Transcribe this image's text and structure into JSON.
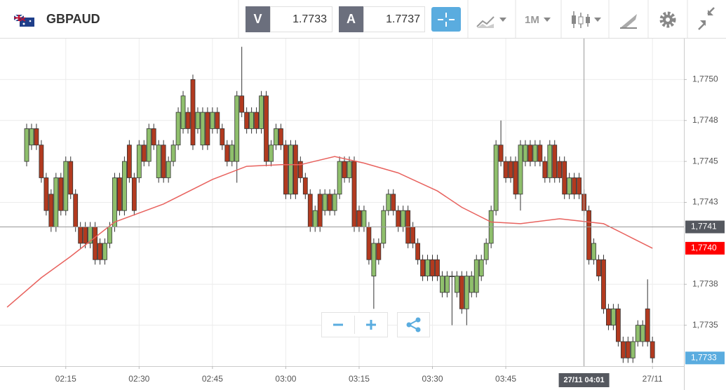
{
  "header": {
    "symbol": "GBPAUD",
    "bid_label": "V",
    "bid": "1.7733",
    "ask_label": "A",
    "ask": "1.7737",
    "interval": "1M"
  },
  "chart_data": {
    "type": "candlestick",
    "x": [
      "02:07",
      "02:08",
      "02:09",
      "02:10",
      "02:11",
      "02:12",
      "02:13",
      "02:14",
      "02:15",
      "02:16",
      "02:17",
      "02:18",
      "02:19",
      "02:20",
      "02:21",
      "02:22",
      "02:23",
      "02:24",
      "02:25",
      "02:26",
      "02:27",
      "02:28",
      "02:29",
      "02:30",
      "02:31",
      "02:32",
      "02:33",
      "02:34",
      "02:35",
      "02:36",
      "02:37",
      "02:38",
      "02:39",
      "02:40",
      "02:41",
      "02:42",
      "02:43",
      "02:44",
      "02:45",
      "02:46",
      "02:47",
      "02:48",
      "02:49",
      "02:50",
      "02:51",
      "02:52",
      "02:53",
      "02:54",
      "02:55",
      "02:56",
      "02:57",
      "02:58",
      "02:59",
      "03:00",
      "03:01",
      "03:02",
      "03:03",
      "03:04",
      "03:05",
      "03:06",
      "03:07",
      "03:08",
      "03:09",
      "03:10",
      "03:11",
      "03:12",
      "03:13",
      "03:14",
      "03:15",
      "03:16",
      "03:17",
      "03:18",
      "03:19",
      "03:20",
      "03:21",
      "03:22",
      "03:23",
      "03:24",
      "03:25",
      "03:26",
      "03:27",
      "03:28",
      "03:29",
      "03:30",
      "03:31",
      "03:32",
      "03:33",
      "03:34",
      "03:35",
      "03:36",
      "03:37",
      "03:38",
      "03:39",
      "03:40",
      "03:41",
      "03:42",
      "03:43",
      "03:44",
      "03:45",
      "03:46",
      "03:47",
      "03:48",
      "03:49",
      "03:50",
      "03:51",
      "03:52",
      "03:53",
      "03:54",
      "03:55",
      "03:56",
      "03:57",
      "03:58",
      "03:59",
      "04:00",
      "04:01",
      "04:02",
      "04:03",
      "04:04",
      "04:05",
      "04:06",
      "04:07",
      "04:08",
      "04:09",
      "04:10",
      "04:11",
      "04:12",
      "04:13",
      "04:14",
      "04:15"
    ],
    "open": [
      1.7745,
      1.7746,
      1.7747,
      1.7746,
      1.7744,
      1.7743,
      1.7741,
      1.7744,
      1.7742,
      1.7745,
      1.7743,
      1.7741,
      1.7741,
      1.774,
      1.7741,
      1.774,
      1.7739,
      1.774,
      1.7741,
      1.7744,
      1.7742,
      1.7746,
      1.7744,
      1.7744,
      1.7746,
      1.7745,
      1.7747,
      1.7744,
      1.7746,
      1.7744,
      1.7745,
      1.7746,
      1.7747,
      1.7748,
      1.775,
      1.7747,
      1.7746,
      1.7748,
      1.7747,
      1.7748,
      1.7747,
      1.7746,
      1.7745,
      1.7745,
      1.7749,
      1.7748,
      1.7747,
      1.7748,
      1.7747,
      1.7749,
      1.7745,
      1.7746,
      1.7747,
      1.7746,
      1.7743,
      1.7746,
      1.7745,
      1.7744,
      1.7743,
      1.7741,
      1.7743,
      1.7742,
      1.7743,
      1.7742,
      1.7743,
      1.7745,
      1.7744,
      1.7745,
      1.7742,
      1.7741,
      1.7741,
      1.7738,
      1.774,
      1.774,
      1.7742,
      1.7743,
      1.7742,
      1.7741,
      1.7742,
      1.7741,
      1.774,
      1.7739,
      1.7738,
      1.7739,
      1.7739,
      1.7737,
      1.7737,
      1.7738,
      1.7737,
      1.7738,
      1.7736,
      1.7737,
      1.7737,
      1.7738,
      1.7739,
      1.774,
      1.7742,
      1.7746,
      1.7745,
      1.7745,
      1.7745,
      1.7743,
      1.7745,
      1.7746,
      1.7745,
      1.7746,
      1.7745,
      1.7744,
      1.7746,
      1.7745,
      1.7745,
      1.7743,
      1.7744,
      1.7744,
      1.7743,
      1.7742,
      1.7739,
      1.7739,
      1.7739,
      1.7736,
      1.7735,
      1.7736,
      1.7734,
      1.7734,
      1.7733,
      1.7734,
      1.7734,
      1.7736,
      1.7734
    ],
    "high": [
      1.77473,
      1.77473,
      1.77473,
      1.77463,
      1.77443,
      1.77433,
      1.77443,
      1.77443,
      1.77453,
      1.77453,
      1.77433,
      1.77413,
      1.77413,
      1.77413,
      1.77413,
      1.77403,
      1.77403,
      1.77413,
      1.77443,
      1.77443,
      1.77453,
      1.77463,
      1.77443,
      1.77463,
      1.77463,
      1.77473,
      1.77473,
      1.77463,
      1.77463,
      1.77453,
      1.77463,
      1.77483,
      1.77493,
      1.77483,
      1.77503,
      1.77483,
      1.77483,
      1.77483,
      1.77483,
      1.77483,
      1.77473,
      1.77463,
      1.77463,
      1.77493,
      1.7752,
      1.77483,
      1.77483,
      1.77483,
      1.77493,
      1.77493,
      1.77463,
      1.77473,
      1.77473,
      1.77463,
      1.77463,
      1.77463,
      1.77453,
      1.77443,
      1.77433,
      1.77423,
      1.77433,
      1.77433,
      1.77433,
      1.77433,
      1.77453,
      1.77453,
      1.77453,
      1.77453,
      1.77423,
      1.77423,
      1.77413,
      1.77403,
      1.77403,
      1.77423,
      1.77433,
      1.77433,
      1.77423,
      1.77423,
      1.77423,
      1.77413,
      1.77403,
      1.77393,
      1.77393,
      1.77393,
      1.77393,
      1.77383,
      1.77383,
      1.77383,
      1.77383,
      1.77383,
      1.77383,
      1.77383,
      1.77393,
      1.77393,
      1.77403,
      1.77423,
      1.77463,
      1.77475,
      1.77453,
      1.77453,
      1.77453,
      1.77463,
      1.77463,
      1.77463,
      1.77463,
      1.77463,
      1.77453,
      1.77463,
      1.77463,
      1.77453,
      1.77453,
      1.77443,
      1.77443,
      1.77443,
      1.77433,
      1.77423,
      1.77403,
      1.77393,
      1.77393,
      1.77363,
      1.77363,
      1.77363,
      1.77343,
      1.77343,
      1.77343,
      1.77353,
      1.77353,
      1.77378,
      1.77343
    ],
    "low": [
      1.77447,
      1.77457,
      1.77457,
      1.77437,
      1.77417,
      1.77407,
      1.77407,
      1.77417,
      1.77417,
      1.77427,
      1.77407,
      1.77397,
      1.77397,
      1.77397,
      1.77387,
      1.77387,
      1.77387,
      1.77397,
      1.77407,
      1.77417,
      1.77417,
      1.77437,
      1.77417,
      1.77437,
      1.77447,
      1.77447,
      1.77457,
      1.77437,
      1.77437,
      1.77437,
      1.77447,
      1.77457,
      1.77467,
      1.77467,
      1.77457,
      1.77467,
      1.77457,
      1.77457,
      1.77467,
      1.77467,
      1.77457,
      1.77447,
      1.77447,
      1.77437,
      1.77477,
      1.77467,
      1.77467,
      1.77467,
      1.77467,
      1.77447,
      1.77447,
      1.77457,
      1.77457,
      1.77427,
      1.77427,
      1.77427,
      1.77437,
      1.77427,
      1.77407,
      1.77407,
      1.77407,
      1.77417,
      1.77417,
      1.77417,
      1.77427,
      1.77437,
      1.77437,
      1.77407,
      1.77407,
      1.77407,
      1.77387,
      1.7736,
      1.77387,
      1.77397,
      1.77417,
      1.77417,
      1.77407,
      1.77407,
      1.77397,
      1.77397,
      1.77387,
      1.77377,
      1.77377,
      1.77377,
      1.77377,
      1.77367,
      1.77367,
      1.7735,
      1.77367,
      1.77357,
      1.7735,
      1.77367,
      1.77367,
      1.77377,
      1.77387,
      1.77397,
      1.77417,
      1.77447,
      1.77437,
      1.77437,
      1.77427,
      1.7742,
      1.77447,
      1.77447,
      1.77447,
      1.77447,
      1.77437,
      1.77437,
      1.77437,
      1.77437,
      1.77427,
      1.77427,
      1.77427,
      1.77427,
      1.77417,
      1.77387,
      1.77387,
      1.77377,
      1.77357,
      1.77347,
      1.77347,
      1.77337,
      1.77327,
      1.77327,
      1.77327,
      1.77337,
      1.77337,
      1.77337,
      1.77327
    ],
    "close": [
      1.7747,
      1.7747,
      1.7746,
      1.7744,
      1.7742,
      1.7741,
      1.7744,
      1.7742,
      1.7745,
      1.7743,
      1.7741,
      1.774,
      1.774,
      1.7741,
      1.7739,
      1.7739,
      1.774,
      1.7741,
      1.7744,
      1.7742,
      1.7745,
      1.7744,
      1.7742,
      1.7746,
      1.7745,
      1.7747,
      1.7746,
      1.7746,
      1.7744,
      1.7745,
      1.7746,
      1.7748,
      1.7749,
      1.7747,
      1.7746,
      1.7748,
      1.7748,
      1.7746,
      1.7748,
      1.7747,
      1.7746,
      1.7745,
      1.7746,
      1.7749,
      1.7748,
      1.7747,
      1.7748,
      1.7747,
      1.7749,
      1.7745,
      1.7746,
      1.7747,
      1.7746,
      1.7743,
      1.7746,
      1.7743,
      1.7744,
      1.7743,
      1.7741,
      1.7742,
      1.7741,
      1.7743,
      1.7742,
      1.7743,
      1.7745,
      1.7744,
      1.7745,
      1.7741,
      1.7741,
      1.7742,
      1.7739,
      1.774,
      1.7739,
      1.7742,
      1.7743,
      1.7742,
      1.7741,
      1.7742,
      1.774,
      1.774,
      1.7739,
      1.7738,
      1.7739,
      1.7738,
      1.7738,
      1.7738,
      1.7738,
      1.7738,
      1.7738,
      1.7736,
      1.7738,
      1.7738,
      1.7739,
      1.7739,
      1.774,
      1.7742,
      1.7746,
      1.7745,
      1.7744,
      1.7744,
      1.7743,
      1.7746,
      1.7746,
      1.7745,
      1.7746,
      1.7745,
      1.7744,
      1.7746,
      1.7744,
      1.7744,
      1.7743,
      1.7744,
      1.7743,
      1.7743,
      1.7742,
      1.7739,
      1.774,
      1.7738,
      1.7736,
      1.7735,
      1.7736,
      1.7734,
      1.7733,
      1.7733,
      1.7734,
      1.7735,
      1.7735,
      1.7734,
      1.7733
    ],
    "up_color": "#8fbf6c",
    "down_color": "#b23a1f",
    "ylim": [
      1.77325,
      1.77525
    ],
    "yticks": [
      {
        "value": 1.775,
        "label": "1,7750"
      },
      {
        "value": 1.77475,
        "label": "1,7748"
      },
      {
        "value": 1.7745,
        "label": "1,7745"
      },
      {
        "value": 1.77425,
        "label": "1,7743"
      },
      {
        "value": 1.77375,
        "label": "1,7738"
      },
      {
        "value": 1.7735,
        "label": "1,7735"
      }
    ],
    "xticks": [
      "02:15",
      "02:30",
      "02:45",
      "03:00",
      "03:15",
      "03:30",
      "03:45",
      {
        "value": "04:15",
        "label": "27/11"
      }
    ],
    "grid": true,
    "moving_average": {
      "color": "#e8625e",
      "x": [
        "02:03",
        "02:10",
        "02:16",
        "02:25",
        "02:35",
        "02:45",
        "02:52",
        "02:59",
        "03:03",
        "03:10",
        "03:16",
        "03:23",
        "03:31",
        "03:36",
        "03:42",
        "03:48",
        "03:56",
        "04:05",
        "04:11",
        "04:15"
      ],
      "values": [
        1.77361,
        1.77379,
        1.77392,
        1.77413,
        1.77424,
        1.77439,
        1.77447,
        1.77448,
        1.77448,
        1.77453,
        1.77449,
        1.77443,
        1.77432,
        1.77422,
        1.77413,
        1.77412,
        1.77415,
        1.77412,
        1.77403,
        1.77397
      ],
      "label": {
        "value": 1.77397,
        "label": "1,7740"
      }
    },
    "crosshair": {
      "x": "04:01",
      "x_label": "27/11 04:01",
      "y": 1.7741,
      "y_label": "1,7741"
    },
    "last_price": {
      "value": 1.7733,
      "label": "1,7733"
    }
  }
}
